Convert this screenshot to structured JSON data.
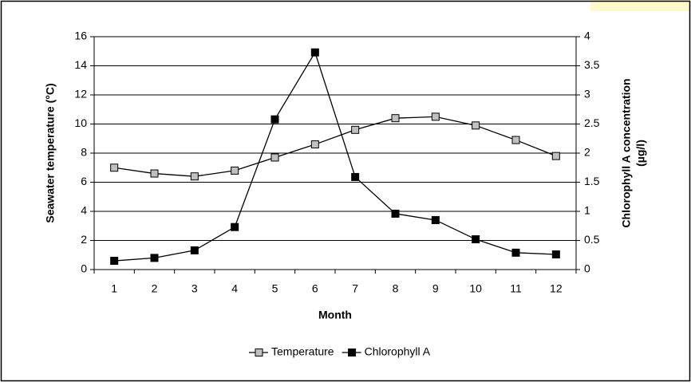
{
  "chart_data": {
    "type": "line",
    "x_label": "Month",
    "y_label": "Seawater temperature (°C)",
    "y2_label": [
      "Chlorophyll A concentration",
      "(µg/l)"
    ],
    "categories": [
      "1",
      "2",
      "3",
      "4",
      "5",
      "6",
      "7",
      "8",
      "9",
      "10",
      "11",
      "12"
    ],
    "series": [
      {
        "name": "Temperature",
        "color": "#c0c0c0",
        "values": [
          7.0,
          6.6,
          6.4,
          6.8,
          7.7,
          8.6,
          9.6,
          10.4,
          10.5,
          9.9,
          8.9,
          7.8
        ]
      },
      {
        "name": "Chlorophyll A",
        "color": "#000000",
        "axis": "y2",
        "values": [
          0.15,
          0.2,
          0.33,
          0.73,
          2.58,
          3.73,
          1.59,
          0.96,
          0.85,
          0.52,
          0.29,
          0.26
        ]
      }
    ],
    "ylim": [
      0,
      16
    ],
    "yticks": [
      0,
      2,
      4,
      6,
      8,
      10,
      12,
      14,
      16
    ],
    "y2lim": [
      0,
      4
    ],
    "y2ticks": [
      0,
      0.5,
      1,
      1.5,
      2,
      2.5,
      3,
      3.5,
      4
    ],
    "grid": true,
    "legend": "bottom"
  }
}
